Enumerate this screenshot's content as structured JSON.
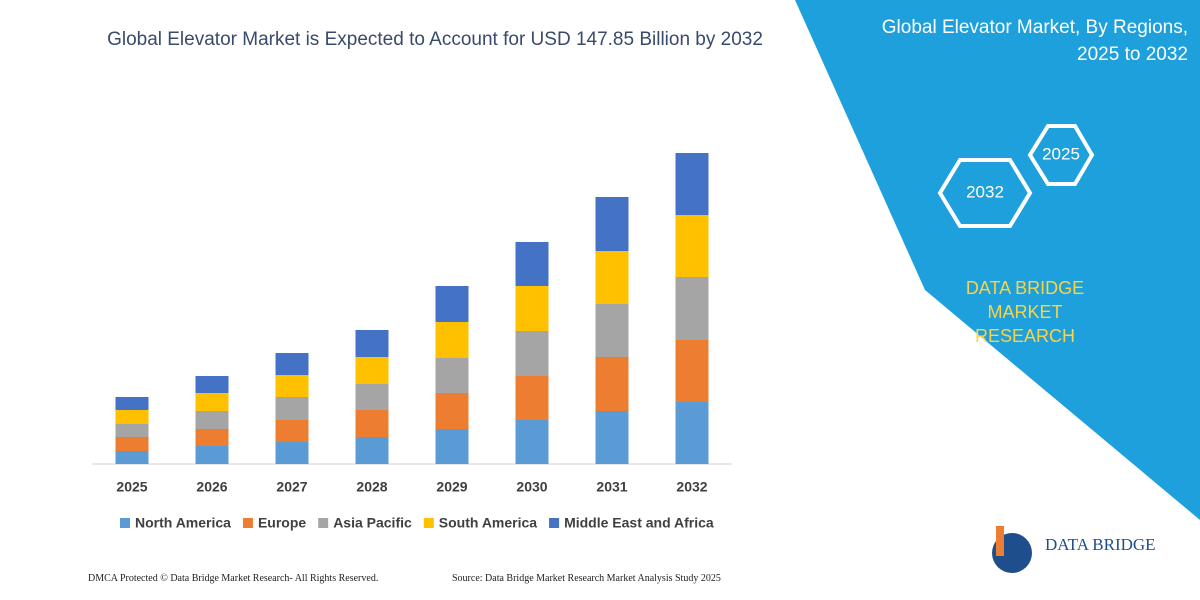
{
  "chart_data": {
    "type": "bar",
    "stacked": true,
    "title": "Global Elevator Market is Expected to Account for USD 147.85 Billion by 2032",
    "categories": [
      "2025",
      "2026",
      "2027",
      "2028",
      "2029",
      "2030",
      "2031",
      "2032"
    ],
    "series": [
      {
        "name": "North America",
        "color": "#5b9bd5",
        "values": [
          13,
          18,
          22,
          27,
          35,
          44,
          53,
          62
        ]
      },
      {
        "name": "Europe",
        "color": "#ed7d31",
        "values": [
          14,
          17,
          22,
          27,
          36,
          44,
          54,
          62
        ]
      },
      {
        "name": "Asia Pacific",
        "color": "#a5a5a5",
        "values": [
          13,
          18,
          23,
          26,
          35,
          45,
          53,
          63
        ]
      },
      {
        "name": "South America",
        "color": "#ffc000",
        "values": [
          14,
          18,
          22,
          27,
          36,
          45,
          53,
          62
        ]
      },
      {
        "name": "Middle East and Africa",
        "color": "#4472c4",
        "values": [
          13,
          17,
          22,
          27,
          36,
          44,
          54,
          62
        ]
      }
    ],
    "ylim": [
      0,
      320
    ],
    "grid": false,
    "legend": "bottom"
  },
  "panel": {
    "title": "Global Elevator Market, By Regions, 2025 to 2032",
    "hex_labels": [
      "2025",
      "2032"
    ],
    "brand": "DATA BRIDGE MARKET RESEARCH"
  },
  "logo": {
    "name": "DATA BRIDGE"
  },
  "footer": {
    "left": "DMCA Protected © Data Bridge Market Research-  All Rights Reserved.",
    "right": "Source: Data Bridge Market Research  Market Analysis Study 2025"
  }
}
